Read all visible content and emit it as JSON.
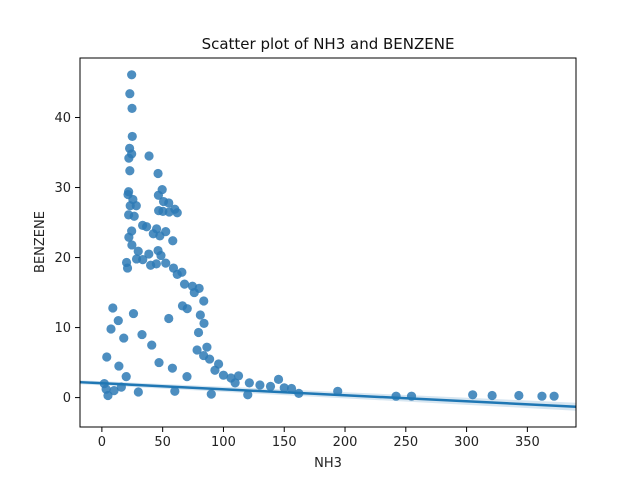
{
  "chart_data": {
    "type": "scatter",
    "title": "Scatter plot of NH3 and BENZENE",
    "xlabel": "NH3",
    "ylabel": "BENZENE",
    "xlim": [
      -18,
      390
    ],
    "ylim": [
      -4.2,
      48.5
    ],
    "xticks": [
      0,
      50,
      100,
      150,
      200,
      250,
      300,
      350
    ],
    "yticks": [
      0,
      10,
      20,
      30,
      40
    ],
    "xtick_labels": [
      "0",
      "50",
      "100",
      "150",
      "200",
      "250",
      "300",
      "350"
    ],
    "ytick_labels": [
      "0",
      "10",
      "20",
      "30",
      "40"
    ],
    "grid": false,
    "point_color": "#2e7ab5",
    "line_color": "#1f77b4",
    "regression_line": {
      "x": [
        -18,
        390
      ],
      "y": [
        2.2,
        -1.3
      ]
    },
    "series": [
      {
        "values": [
          [
            24.5,
            46.1
          ],
          [
            23.0,
            43.4
          ],
          [
            24.8,
            41.3
          ],
          [
            25.0,
            37.3
          ],
          [
            38.8,
            34.5
          ],
          [
            22.2,
            34.2
          ],
          [
            22.8,
            35.6
          ],
          [
            24.5,
            34.8
          ],
          [
            23.0,
            32.4
          ],
          [
            46.2,
            32.0
          ],
          [
            49.6,
            29.7
          ],
          [
            46.5,
            28.9
          ],
          [
            21.5,
            29.0
          ],
          [
            22.0,
            29.4
          ],
          [
            25.5,
            28.3
          ],
          [
            50.7,
            28.0
          ],
          [
            23.3,
            27.4
          ],
          [
            55.0,
            27.8
          ],
          [
            28.3,
            27.4
          ],
          [
            60.0,
            26.9
          ],
          [
            46.7,
            26.7
          ],
          [
            50.2,
            26.6
          ],
          [
            55.4,
            26.5
          ],
          [
            62.0,
            26.4
          ],
          [
            22.0,
            26.1
          ],
          [
            26.6,
            25.9
          ],
          [
            33.5,
            24.6
          ],
          [
            36.8,
            24.4
          ],
          [
            45.0,
            24.1
          ],
          [
            52.5,
            23.7
          ],
          [
            24.5,
            23.8
          ],
          [
            42.3,
            23.4
          ],
          [
            47.7,
            23.1
          ],
          [
            22.2,
            22.9
          ],
          [
            58.3,
            22.4
          ],
          [
            24.7,
            21.8
          ],
          [
            29.9,
            20.9
          ],
          [
            46.2,
            21.0
          ],
          [
            38.6,
            20.5
          ],
          [
            48.6,
            20.3
          ],
          [
            20.3,
            19.3
          ],
          [
            28.5,
            19.8
          ],
          [
            33.6,
            19.7
          ],
          [
            44.8,
            19.1
          ],
          [
            52.5,
            19.2
          ],
          [
            21.1,
            18.5
          ],
          [
            40.1,
            18.9
          ],
          [
            58.9,
            18.5
          ],
          [
            65.8,
            17.9
          ],
          [
            62.0,
            17.6
          ],
          [
            68.0,
            16.2
          ],
          [
            74.5,
            15.9
          ],
          [
            80.0,
            15.6
          ],
          [
            76.0,
            15.0
          ],
          [
            83.8,
            13.8
          ],
          [
            70.2,
            12.7
          ],
          [
            81.0,
            11.8
          ],
          [
            66.3,
            13.1
          ],
          [
            84.0,
            10.6
          ],
          [
            79.5,
            9.3
          ],
          [
            86.4,
            7.2
          ],
          [
            78.3,
            6.8
          ],
          [
            83.7,
            6.0
          ],
          [
            88.6,
            5.5
          ],
          [
            96.0,
            4.8
          ],
          [
            93.0,
            3.9
          ],
          [
            100.0,
            3.2
          ],
          [
            106.2,
            2.8
          ],
          [
            109.6,
            2.1
          ],
          [
            112.4,
            3.1
          ],
          [
            121.3,
            2.1
          ],
          [
            130.0,
            1.8
          ],
          [
            138.7,
            1.6
          ],
          [
            145.3,
            2.6
          ],
          [
            150.0,
            1.4
          ],
          [
            156.0,
            1.3
          ],
          [
            162.0,
            0.6
          ],
          [
            194.0,
            0.9
          ],
          [
            242.0,
            0.2
          ],
          [
            254.7,
            0.2
          ],
          [
            305.0,
            0.4
          ],
          [
            321.0,
            0.3
          ],
          [
            343.0,
            0.3
          ],
          [
            362.0,
            0.2
          ],
          [
            372.0,
            0.2
          ],
          [
            5.0,
            0.3
          ],
          [
            10.0,
            1.0
          ],
          [
            16.0,
            1.5
          ],
          [
            30.0,
            0.8
          ],
          [
            60.0,
            0.9
          ],
          [
            90.0,
            0.5
          ],
          [
            120.0,
            0.4
          ],
          [
            2.0,
            2.0
          ],
          [
            4.0,
            5.8
          ],
          [
            7.5,
            9.8
          ],
          [
            9.0,
            12.8
          ],
          [
            13.5,
            11.0
          ],
          [
            18.0,
            8.5
          ],
          [
            26.0,
            12.0
          ],
          [
            33.0,
            9.0
          ],
          [
            41.0,
            7.5
          ],
          [
            55.0,
            11.3
          ],
          [
            14.0,
            4.5
          ],
          [
            20.0,
            3.0
          ],
          [
            47.0,
            5.0
          ],
          [
            58.0,
            4.2
          ],
          [
            70.0,
            3.0
          ],
          [
            3.5,
            1.2
          ]
        ]
      }
    ]
  }
}
